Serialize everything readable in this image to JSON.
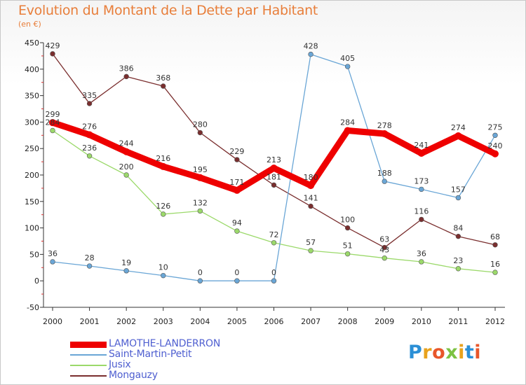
{
  "title": "Evolution du Montant de la Dette par Habitant",
  "subtitle": "(en €)",
  "logo": {
    "letters": [
      "P",
      "r",
      "o",
      "x",
      "i",
      "t",
      "i"
    ],
    "colors": [
      "#2b8fd6",
      "#e8a21d",
      "#e8562a",
      "#7cc242",
      "#e8a21d",
      "#2b8fd6",
      "#e8562a"
    ]
  },
  "chart_data": {
    "type": "line",
    "title": "Evolution du Montant de la Dette par Habitant",
    "ylabel": "(en €)",
    "xlabel": "",
    "x": [
      "2000",
      "2001",
      "2002",
      "2003",
      "2004",
      "2005",
      "2006",
      "2007",
      "2008",
      "2009",
      "2010",
      "2011",
      "2012"
    ],
    "yticks": [
      "450",
      "400",
      "350",
      "300",
      "250",
      "200",
      "150",
      "100",
      "50",
      "0",
      "-50"
    ],
    "ylim": [
      -50,
      450
    ],
    "grid": false,
    "legend_position": "bottom-left",
    "series": [
      {
        "name": "LAMOTHE-LANDERRON",
        "color": "#ee0000",
        "values": [
          299,
          276,
          244,
          216,
          195,
          171,
          213,
          180,
          284,
          278,
          241,
          274,
          240
        ]
      },
      {
        "name": "Saint-Martin-Petit",
        "color": "#6aa6d6",
        "values": [
          36,
          28,
          19,
          10,
          0,
          0,
          0,
          428,
          405,
          188,
          173,
          157,
          275
        ]
      },
      {
        "name": "Jusix",
        "color": "#9bd96a",
        "values": [
          284,
          236,
          200,
          126,
          132,
          94,
          72,
          57,
          51,
          43,
          36,
          23,
          16
        ]
      },
      {
        "name": "Mongauzy",
        "color": "#7a2e2e",
        "values": [
          429,
          335,
          386,
          368,
          280,
          229,
          181,
          141,
          100,
          63,
          116,
          84,
          68
        ]
      }
    ]
  }
}
